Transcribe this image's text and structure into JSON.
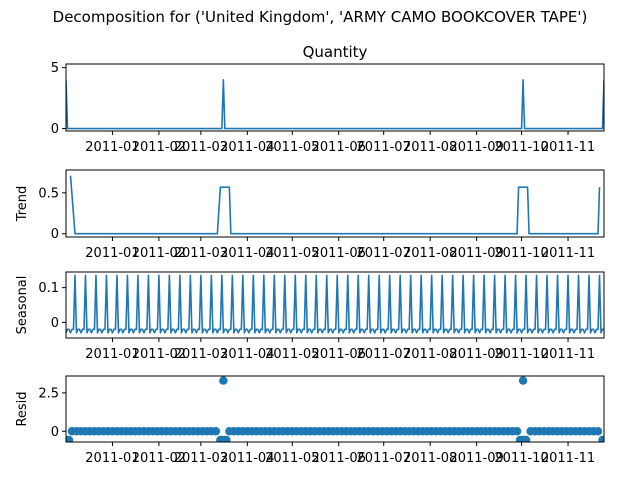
{
  "figure": {
    "suptitle": "Decomposition for ('United Kingdom', 'ARMY CAMO BOOKCOVER TAPE')"
  },
  "colors": {
    "series": "#1f77b4",
    "axis": "#000000",
    "background": "#ffffff"
  },
  "chart_data": [
    {
      "type": "line",
      "title": "Quantity",
      "ylabel": "",
      "ylim": [
        -0.2,
        5.3
      ],
      "yticks": [
        0,
        5
      ],
      "xlim": [
        "2010-12-01",
        "2011-11-25"
      ],
      "xticks": [
        "2011-01",
        "2011-02",
        "2011-03",
        "2011-04",
        "2011-05",
        "2011-06",
        "2011-07",
        "2011-08",
        "2011-09",
        "2011-10",
        "2011-11"
      ],
      "points": [
        [
          "2010-12-01",
          4
        ],
        [
          "2010-12-02",
          0
        ],
        [
          "2011-03-15",
          0
        ],
        [
          "2011-03-16",
          4
        ],
        [
          "2011-03-17",
          0
        ],
        [
          "2011-10-01",
          0
        ],
        [
          "2011-10-02",
          4
        ],
        [
          "2011-10-03",
          0
        ],
        [
          "2011-11-24",
          0
        ],
        [
          "2011-11-25",
          4
        ]
      ]
    },
    {
      "type": "line",
      "title": "",
      "ylabel": "Trend",
      "ylim": [
        -0.04,
        0.78
      ],
      "yticks": [
        0.0,
        0.5
      ],
      "xlim": [
        "2010-12-01",
        "2011-11-25"
      ],
      "xticks": [
        "2011-01",
        "2011-02",
        "2011-03",
        "2011-04",
        "2011-05",
        "2011-06",
        "2011-07",
        "2011-08",
        "2011-09",
        "2011-10",
        "2011-11"
      ],
      "points": [
        [
          "2010-12-04",
          0.71
        ],
        [
          "2010-12-07",
          0
        ],
        [
          "2011-03-12",
          0
        ],
        [
          "2011-03-14",
          0.57
        ],
        [
          "2011-03-20",
          0.57
        ],
        [
          "2011-03-21",
          0
        ],
        [
          "2011-09-28",
          0
        ],
        [
          "2011-09-29",
          0.57
        ],
        [
          "2011-10-05",
          0.57
        ],
        [
          "2011-10-06",
          0
        ],
        [
          "2011-11-21",
          0
        ],
        [
          "2011-11-22",
          0.57
        ]
      ]
    },
    {
      "type": "line",
      "title": "",
      "ylabel": "Seasonal",
      "ylim": [
        -0.045,
        0.145
      ],
      "yticks": [
        0.0,
        0.1
      ],
      "xlim": [
        "2010-12-01",
        "2011-11-25"
      ],
      "xticks": [
        "2011-01",
        "2011-02",
        "2011-03",
        "2011-04",
        "2011-05",
        "2011-06",
        "2011-07",
        "2011-08",
        "2011-09",
        "2011-10",
        "2011-11"
      ],
      "pattern": {
        "period_days": 7,
        "first_peak": "2010-12-07",
        "cycle": [
          -0.02,
          -0.02,
          -0.03,
          -0.02,
          -0.02,
          0.135,
          -0.03
        ]
      }
    },
    {
      "type": "scatter",
      "title": "",
      "ylabel": "Resid",
      "ylim": [
        -0.7,
        3.6
      ],
      "yticks": [
        0.0,
        2.5
      ],
      "xlim": [
        "2010-12-01",
        "2011-11-25"
      ],
      "xticks": [
        "2011-01",
        "2011-02",
        "2011-03",
        "2011-04",
        "2011-05",
        "2011-06",
        "2011-07",
        "2011-08",
        "2011-09",
        "2011-10",
        "2011-11"
      ],
      "baseline_value": 0.0,
      "outliers": [
        [
          "2010-12-02",
          -0.57
        ],
        [
          "2010-12-03",
          -0.57
        ],
        [
          "2011-03-14",
          -0.57
        ],
        [
          "2011-03-15",
          -0.57
        ],
        [
          "2011-03-16",
          3.3
        ],
        [
          "2011-03-17",
          -0.57
        ],
        [
          "2011-03-18",
          -0.57
        ],
        [
          "2011-09-30",
          -0.57
        ],
        [
          "2011-10-01",
          -0.57
        ],
        [
          "2011-10-02",
          3.3
        ],
        [
          "2011-10-03",
          -0.57
        ],
        [
          "2011-10-04",
          -0.57
        ],
        [
          "2011-11-24",
          -0.57
        ]
      ]
    }
  ]
}
